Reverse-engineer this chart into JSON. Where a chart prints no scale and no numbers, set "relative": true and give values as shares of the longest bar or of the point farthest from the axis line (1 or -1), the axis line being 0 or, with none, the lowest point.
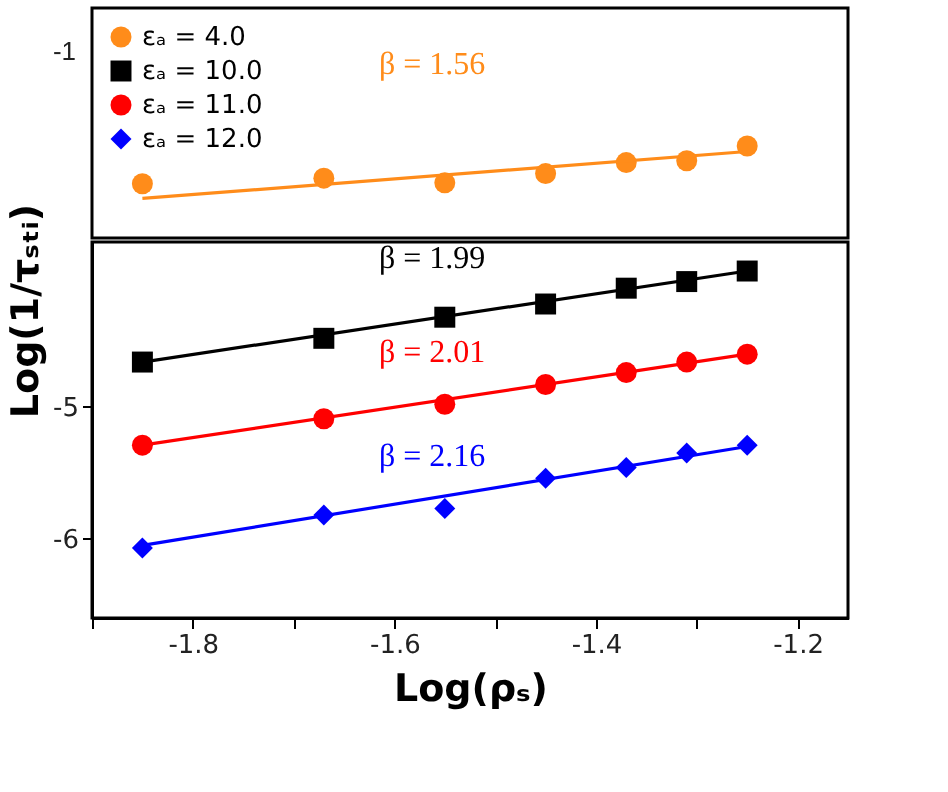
{
  "chart_data": [
    {
      "type": "scatter",
      "relative": true,
      "xlim": [
        -1.9,
        -1.15
      ],
      "grid": false,
      "series": [
        {
          "name": "εₐ = 4.0",
          "color": "#ff8c1a",
          "marker": "circle",
          "x": [
            -1.85,
            -1.67,
            -1.55,
            -1.45,
            -1.37,
            -1.31,
            -1.25
          ],
          "values": [
            0.59,
            0.65,
            0.6,
            0.7,
            0.82,
            0.84,
            1.0
          ]
        },
        {
          "type": "line",
          "color": "#ff8c1a",
          "marker": "none",
          "x": [
            -1.85,
            -1.25
          ],
          "values": [
            0.43,
            0.94
          ]
        }
      ],
      "annotations": [
        "-1",
        "β = 1.56"
      ]
    },
    {
      "type": "scatter",
      "xlim": [
        -1.9,
        -1.15
      ],
      "ylim": [
        -6.6,
        -3.75
      ],
      "xticks": [
        {
          "value": -1.9,
          "label": null
        },
        -1.8,
        {
          "value": -1.7,
          "label": null
        },
        -1.6,
        {
          "value": -1.5,
          "label": null
        },
        -1.4,
        {
          "value": -1.3,
          "label": null
        },
        -1.2
      ],
      "yticks": [
        -6,
        -5
      ],
      "xlabel": "Log(ρₛ)",
      "ylabel": "Log(1/τₛₜᵢ)",
      "grid": false,
      "legend": "top left",
      "series": [
        {
          "name": "εₐ = 10.0",
          "color": "#000000",
          "marker": "square",
          "x": [
            -1.85,
            -1.67,
            -1.55,
            -1.45,
            -1.37,
            -1.31,
            -1.25
          ],
          "values": [
            -4.66,
            -4.48,
            -4.32,
            -4.22,
            -4.1,
            -4.05,
            -3.97
          ]
        },
        {
          "name": "εₐ = 11.0",
          "color": "#ff0000",
          "marker": "circle",
          "x": [
            -1.85,
            -1.67,
            -1.55,
            -1.45,
            -1.37,
            -1.31,
            -1.25
          ],
          "values": [
            -5.29,
            -5.09,
            -4.98,
            -4.83,
            -4.74,
            -4.66,
            -4.6
          ]
        },
        {
          "name": "εₐ = 12.0",
          "color": "#0000ff",
          "marker": "diamond",
          "x": [
            -1.85,
            -1.67,
            -1.55,
            -1.45,
            -1.37,
            -1.31,
            -1.25
          ],
          "values": [
            -6.07,
            -5.82,
            -5.77,
            -5.54,
            -5.46,
            -5.35,
            -5.29
          ]
        },
        {
          "type": "line",
          "color": "#000000",
          "marker": "none",
          "x": [
            -1.85,
            -1.25
          ],
          "values": [
            -4.66,
            -3.97
          ]
        },
        {
          "type": "line",
          "color": "#ff0000",
          "marker": "none",
          "x": [
            -1.85,
            -1.25
          ],
          "values": [
            -5.29,
            -4.6
          ]
        },
        {
          "type": "line",
          "color": "#0000ff",
          "marker": "none",
          "x": [
            -1.85,
            -1.25
          ],
          "values": [
            -6.05,
            -5.3
          ]
        }
      ],
      "annotations": [
        "β = 1.99",
        "β = 2.01",
        "β = 2.16"
      ]
    }
  ]
}
